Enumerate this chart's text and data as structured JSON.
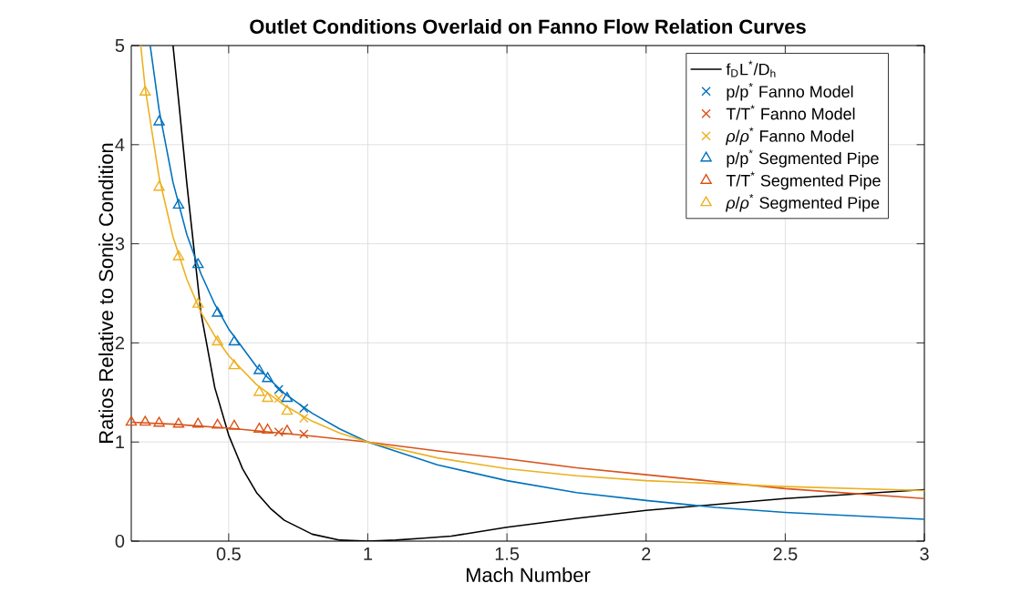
{
  "chart_data": {
    "type": "line",
    "title": "Outlet Conditions Overlaid on Fanno Flow Relation Curves",
    "xlabel": "Mach Number",
    "ylabel": "Ratios Relative to Sonic Condition",
    "xlim": [
      0.15,
      3
    ],
    "ylim": [
      0,
      5
    ],
    "xticks": [
      0.5,
      1,
      1.5,
      2,
      2.5,
      3
    ],
    "yticks": [
      0,
      1,
      2,
      3,
      4,
      5
    ],
    "grid": true,
    "legend": "top right",
    "series": [
      {
        "name": "f$_{D}$L$^{*}$/D$_{h}$",
        "color": "#000000",
        "marker": "none",
        "x": [
          0.3,
          0.32,
          0.35,
          0.4,
          0.45,
          0.5,
          0.55,
          0.6,
          0.65,
          0.7,
          0.8,
          0.9,
          1,
          1.1,
          1.2,
          1.3,
          1.5,
          1.75,
          2,
          2.25,
          2.5,
          3
        ],
        "values": [
          5.0,
          4.45,
          3.6,
          2.31,
          1.55,
          1.07,
          0.73,
          0.49,
          0.33,
          0.21,
          0.07,
          0.01,
          0,
          0.01,
          0.03,
          0.05,
          0.14,
          0.23,
          0.31,
          0.37,
          0.43,
          0.52
        ]
      },
      {
        "color": "#0072bd",
        "marker": "none",
        "x": [
          0.218,
          0.25,
          0.3,
          0.35,
          0.4,
          0.45,
          0.5,
          0.6,
          0.7,
          0.8,
          0.9,
          1,
          1.25,
          1.5,
          1.75,
          2,
          2.25,
          2.5,
          3
        ],
        "values": [
          5.0,
          4.35,
          3.62,
          3.09,
          2.7,
          2.39,
          2.14,
          1.76,
          1.49,
          1.29,
          1.13,
          1,
          0.77,
          0.61,
          0.49,
          0.41,
          0.34,
          0.29,
          0.22
        ]
      },
      {
        "color": "#d95319",
        "marker": "none",
        "x": [
          0.15,
          0.3,
          0.5,
          0.8,
          1,
          1.25,
          1.5,
          1.75,
          2,
          2.25,
          2.5,
          3
        ],
        "values": [
          1.2,
          1.18,
          1.14,
          1.06,
          1,
          0.91,
          0.83,
          0.74,
          0.67,
          0.6,
          0.53,
          0.43
        ]
      },
      {
        "color": "#edb120",
        "marker": "none",
        "x": [
          0.184,
          0.2,
          0.25,
          0.3,
          0.35,
          0.4,
          0.45,
          0.5,
          0.6,
          0.7,
          0.8,
          0.9,
          1,
          1.25,
          1.5,
          1.75,
          2,
          2.25,
          2.5,
          3
        ],
        "values": [
          5.0,
          4.57,
          3.67,
          3.07,
          2.64,
          2.31,
          2.07,
          1.87,
          1.58,
          1.37,
          1.21,
          1.09,
          1,
          0.84,
          0.73,
          0.66,
          0.61,
          0.58,
          0.55,
          0.51
        ]
      },
      {
        "name": "p/p$^{*}$ Fanno Model",
        "type": "scatter",
        "color": "#0072bd",
        "marker": "cross",
        "x": [
          0.68,
          0.77
        ],
        "values": [
          1.53,
          1.34
        ]
      },
      {
        "name": "T/T$^{*}$ Fanno Model",
        "type": "scatter",
        "color": "#d95319",
        "marker": "cross",
        "x": [
          0.68,
          0.77
        ],
        "values": [
          1.1,
          1.08
        ]
      },
      {
        "name": "*ρ*/*ρ*$^{*}$ Fanno Model",
        "type": "scatter",
        "color": "#edb120",
        "marker": "cross",
        "x": [
          0.68,
          0.77
        ],
        "values": [
          1.44,
          1.24
        ]
      },
      {
        "name": "p/p$^{*}$ Segmented Pipe",
        "type": "scatter",
        "color": "#0072bd",
        "marker": "triangle",
        "x": [
          0.25,
          0.32,
          0.39,
          0.46,
          0.52,
          0.61,
          0.64,
          0.71
        ],
        "values": [
          4.23,
          3.39,
          2.79,
          2.3,
          2.01,
          1.72,
          1.64,
          1.44
        ]
      },
      {
        "name": "T/T$^{*}$ Segmented Pipe",
        "type": "scatter",
        "color": "#d95319",
        "marker": "triangle",
        "x": [
          0.15,
          0.2,
          0.25,
          0.32,
          0.39,
          0.46,
          0.52,
          0.61,
          0.64,
          0.71
        ],
        "values": [
          1.2,
          1.2,
          1.19,
          1.18,
          1.18,
          1.17,
          1.16,
          1.13,
          1.12,
          1.11
        ]
      },
      {
        "name": "*ρ*/*ρ*$^{*}$ Segmented Pipe",
        "type": "scatter",
        "color": "#edb120",
        "marker": "triangle",
        "x": [
          0.2,
          0.25,
          0.32,
          0.39,
          0.46,
          0.52,
          0.61,
          0.64,
          0.71
        ],
        "values": [
          4.53,
          3.57,
          2.87,
          2.39,
          2.01,
          1.77,
          1.5,
          1.44,
          1.31
        ]
      }
    ]
  }
}
